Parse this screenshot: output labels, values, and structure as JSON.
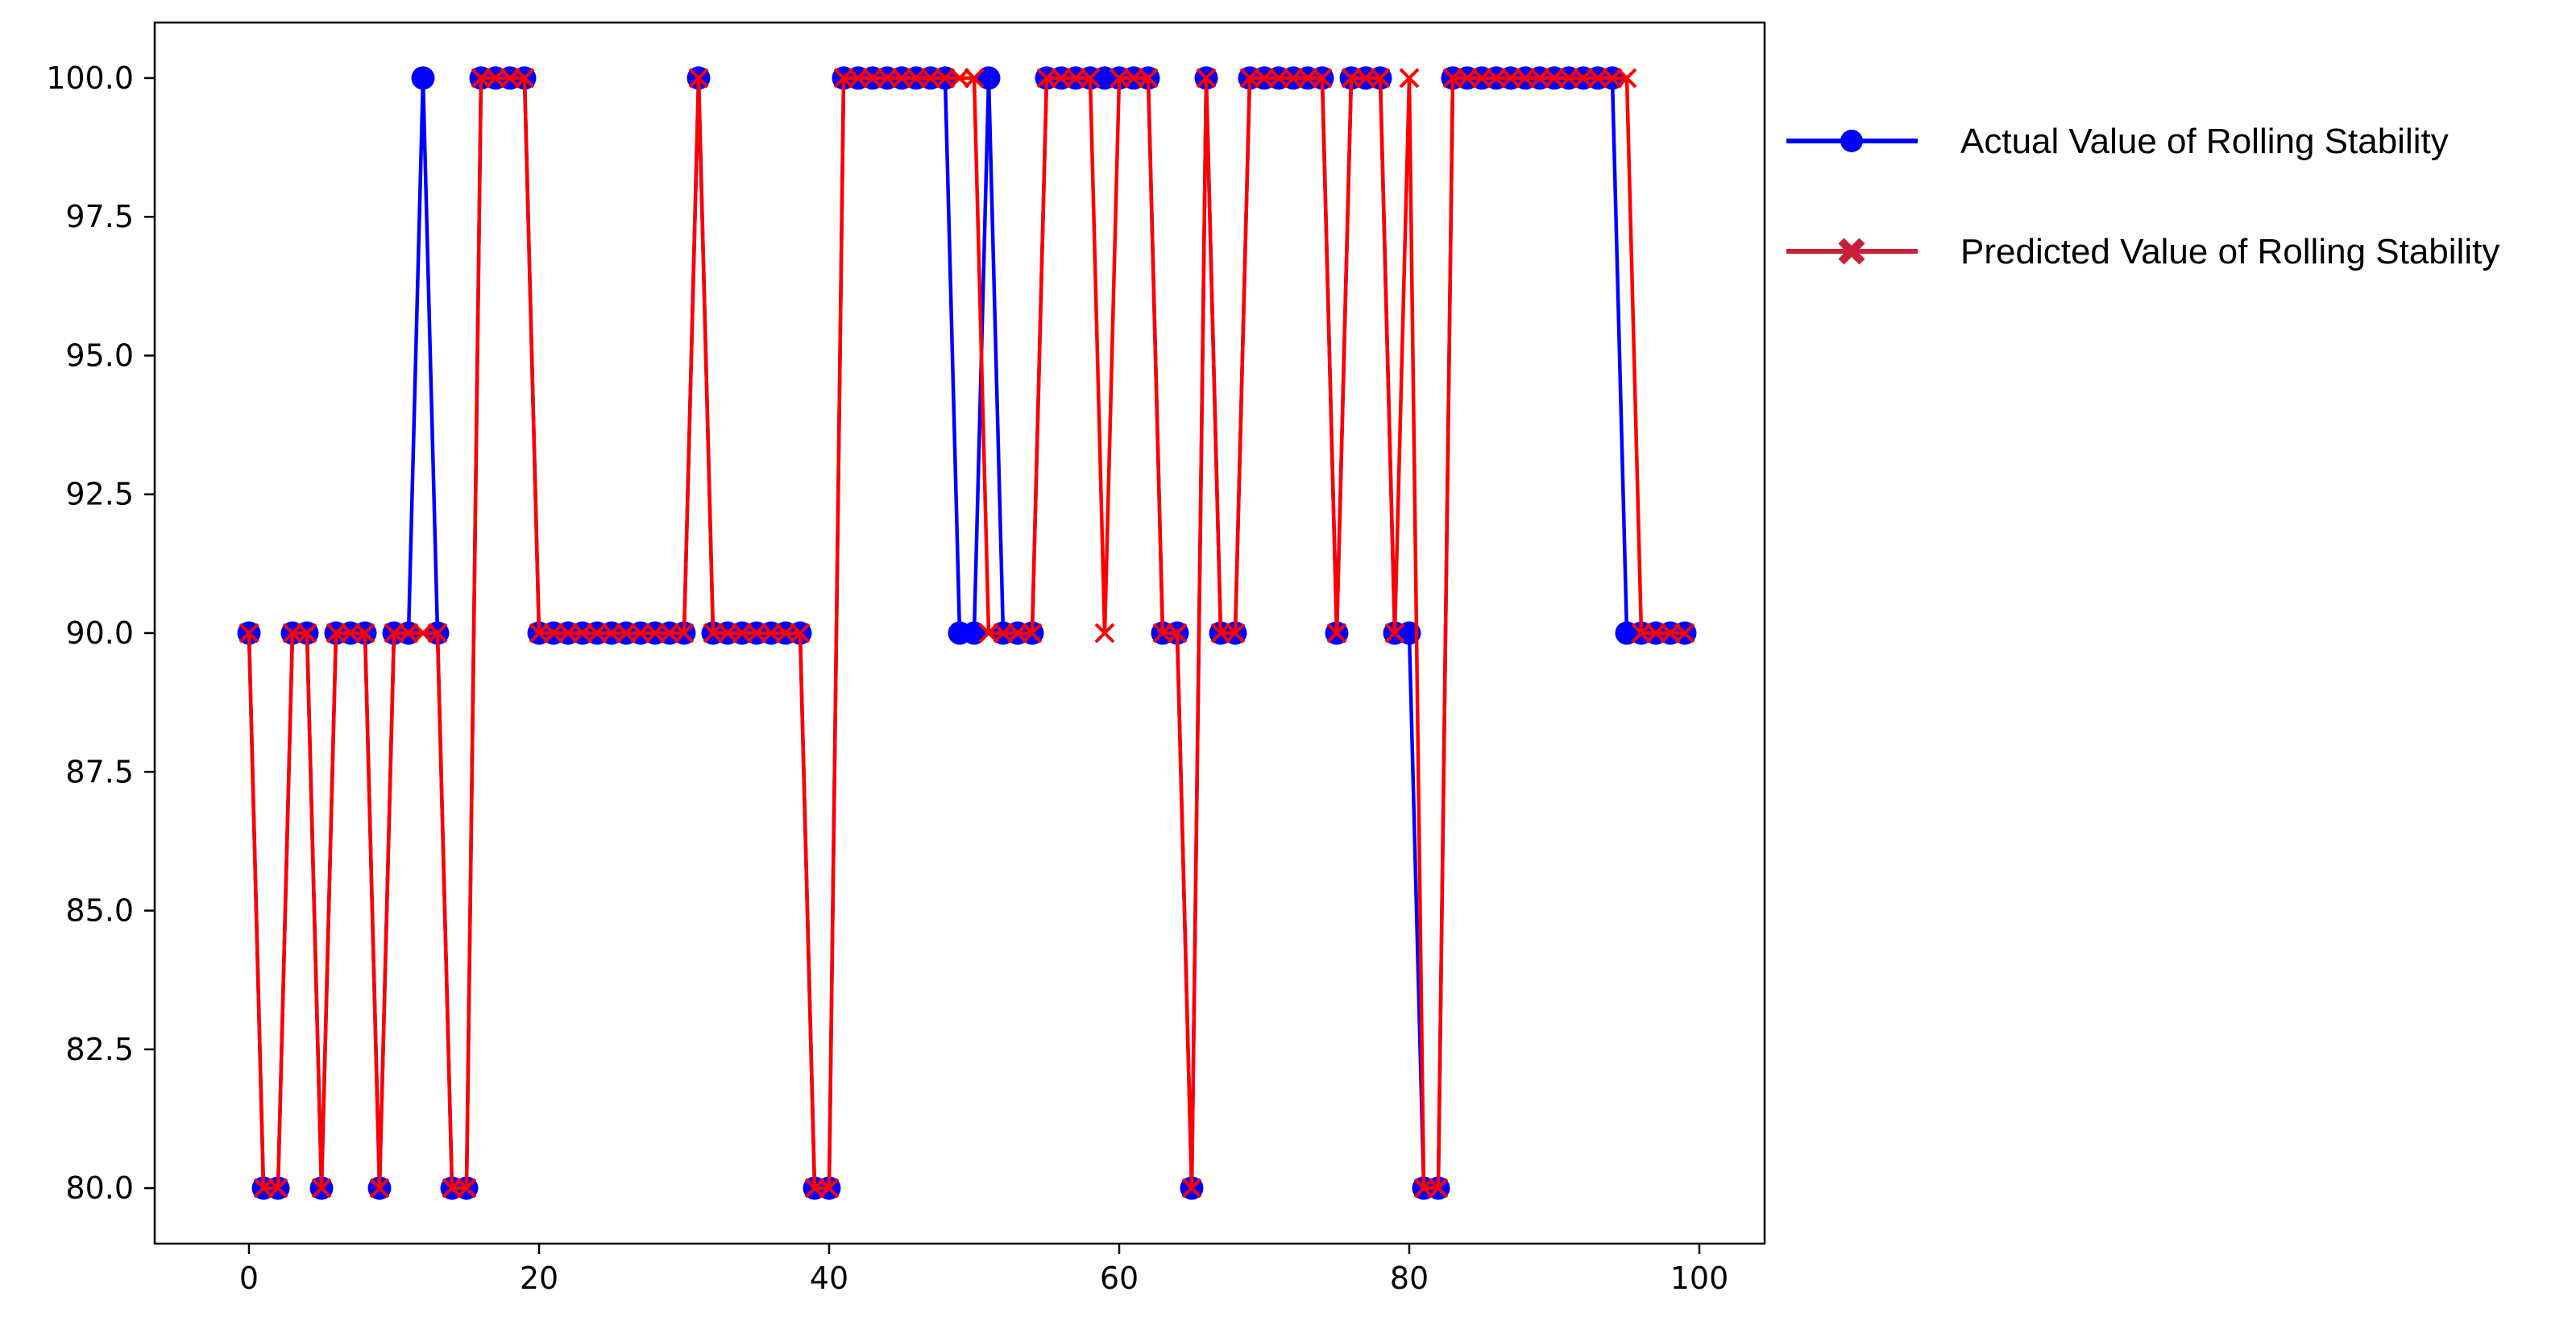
{
  "chart_data": {
    "type": "line",
    "title": "",
    "xlabel": "",
    "ylabel": "",
    "xlim": [
      -6.5,
      104.5
    ],
    "ylim": [
      79.0,
      101.0
    ],
    "x_ticks": [
      0,
      20,
      40,
      60,
      80,
      100
    ],
    "y_ticks": [
      80.0,
      82.5,
      85.0,
      87.5,
      90.0,
      92.5,
      95.0,
      97.5,
      100.0
    ],
    "y_tick_labels": [
      "80.0",
      "82.5",
      "85.0",
      "87.5",
      "90.0",
      "92.5",
      "95.0",
      "97.5",
      "100.0"
    ],
    "grid": false,
    "legend_position": "outside-top-right",
    "x": [
      0,
      1,
      2,
      3,
      4,
      5,
      6,
      7,
      8,
      9,
      10,
      11,
      12,
      13,
      14,
      15,
      16,
      17,
      18,
      19,
      20,
      21,
      22,
      23,
      24,
      25,
      26,
      27,
      28,
      29,
      30,
      31,
      32,
      33,
      34,
      35,
      36,
      37,
      38,
      39,
      40,
      41,
      42,
      43,
      44,
      45,
      46,
      47,
      48,
      49,
      50,
      51,
      52,
      53,
      54,
      55,
      56,
      57,
      58,
      59,
      60,
      61,
      62,
      63,
      64,
      65,
      66,
      67,
      68,
      69,
      70,
      71,
      72,
      73,
      74,
      75,
      76,
      77,
      78,
      79,
      80,
      81,
      82,
      83,
      84,
      85,
      86,
      87,
      88,
      89,
      90,
      91,
      92,
      93,
      94,
      95,
      96,
      97,
      98,
      99
    ],
    "series": [
      {
        "name": "Actual Value of Rolling Stability",
        "color": "#0000ff",
        "marker": "circle",
        "values": [
          90,
          80,
          80,
          90,
          90,
          80,
          90,
          90,
          90,
          80,
          90,
          90,
          100,
          90,
          80,
          80,
          100,
          100,
          100,
          100,
          90,
          90,
          90,
          90,
          90,
          90,
          90,
          90,
          90,
          90,
          90,
          100,
          90,
          90,
          90,
          90,
          90,
          90,
          90,
          80,
          80,
          100,
          100,
          100,
          100,
          100,
          100,
          100,
          100,
          90,
          90,
          100,
          90,
          90,
          90,
          100,
          100,
          100,
          100,
          100,
          100,
          100,
          100,
          90,
          90,
          80,
          100,
          90,
          90,
          100,
          100,
          100,
          100,
          100,
          100,
          90,
          100,
          100,
          100,
          90,
          90,
          80,
          80,
          100,
          100,
          100,
          100,
          100,
          100,
          100,
          100,
          100,
          100,
          100,
          100,
          90,
          90,
          90,
          90,
          90
        ]
      },
      {
        "name": "Predicted Value of Rolling Stability",
        "color": "#ff0000",
        "legend_color": "#c8203a",
        "marker": "x",
        "values": [
          90,
          80,
          80,
          90,
          90,
          80,
          90,
          90,
          90,
          80,
          90,
          90,
          90,
          90,
          80,
          80,
          100,
          100,
          100,
          100,
          90,
          90,
          90,
          90,
          90,
          90,
          90,
          90,
          90,
          90,
          90,
          100,
          90,
          90,
          90,
          90,
          90,
          90,
          90,
          80,
          80,
          100,
          100,
          100,
          100,
          100,
          100,
          100,
          100,
          100,
          100,
          90,
          90,
          90,
          90,
          100,
          100,
          100,
          100,
          90,
          100,
          100,
          100,
          90,
          90,
          80,
          100,
          90,
          90,
          100,
          100,
          100,
          100,
          100,
          100,
          90,
          100,
          100,
          100,
          90,
          100,
          80,
          80,
          100,
          100,
          100,
          100,
          100,
          100,
          100,
          100,
          100,
          100,
          100,
          100,
          100,
          90,
          90,
          90,
          90
        ]
      }
    ]
  }
}
